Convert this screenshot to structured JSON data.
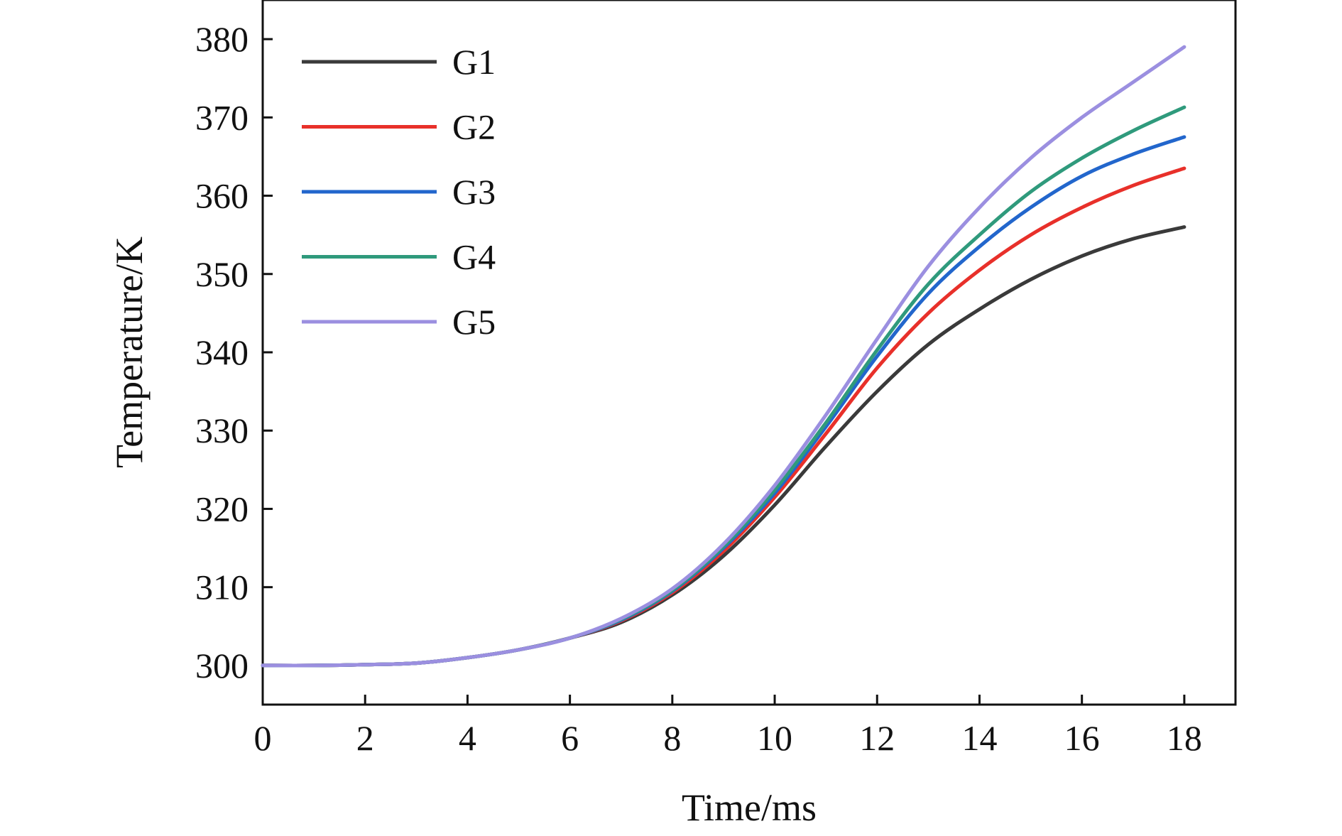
{
  "chart_data": {
    "type": "line",
    "title": "",
    "xlabel": "Time/ms",
    "ylabel": "Temperature/K",
    "xlim": [
      0,
      19
    ],
    "ylim": [
      295,
      385
    ],
    "xticks": [
      0,
      2,
      4,
      6,
      8,
      10,
      12,
      14,
      16,
      18
    ],
    "yticks": [
      300,
      310,
      320,
      330,
      340,
      350,
      360,
      370,
      380
    ],
    "grid": false,
    "legend_position": "top-left",
    "x": [
      0,
      1,
      2,
      3,
      4,
      5,
      6,
      7,
      8,
      9,
      10,
      11,
      12,
      13,
      14,
      15,
      16,
      17,
      18
    ],
    "series": [
      {
        "name": "G1",
        "color": "#3a3a3a",
        "values": [
          300,
          300,
          300.1,
          300.3,
          301,
          302,
          303.5,
          305.5,
          309,
          314,
          320.5,
          328,
          335,
          341,
          345.5,
          349.3,
          352.3,
          354.5,
          356
        ]
      },
      {
        "name": "G2",
        "color": "#e8302a",
        "values": [
          300,
          300,
          300.1,
          300.3,
          301,
          302,
          303.5,
          305.7,
          309.3,
          314.6,
          321.5,
          329.6,
          338,
          345,
          350.5,
          355,
          358.5,
          361.3,
          363.5
        ]
      },
      {
        "name": "G3",
        "color": "#2266cc",
        "values": [
          300,
          300,
          300.1,
          300.3,
          301,
          302,
          303.5,
          305.8,
          309.5,
          315,
          322,
          330.5,
          339.5,
          347.5,
          353.5,
          358.5,
          362.5,
          365.3,
          367.5
        ]
      },
      {
        "name": "G4",
        "color": "#2f9a7c",
        "values": [
          300,
          300,
          300.1,
          300.3,
          301,
          302,
          303.5,
          305.9,
          309.6,
          315.2,
          322.4,
          331,
          340.3,
          348.7,
          355,
          360.5,
          364.8,
          368.3,
          371.3
        ]
      },
      {
        "name": "G5",
        "color": "#9b8fe0",
        "values": [
          300,
          300,
          300.1,
          300.3,
          301,
          302,
          303.5,
          306,
          309.8,
          315.5,
          323,
          332,
          341.7,
          351,
          358.5,
          364.8,
          370,
          374.5,
          379
        ]
      }
    ]
  }
}
